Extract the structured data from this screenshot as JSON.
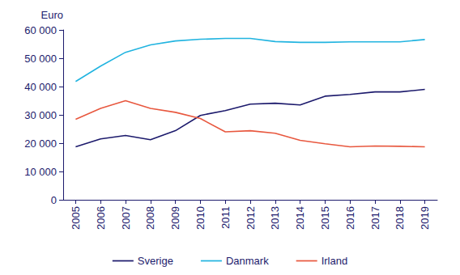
{
  "chart_data": {
    "type": "line",
    "y_label": "Euro",
    "categories": [
      "2005",
      "2006",
      "2007",
      "2008",
      "2009",
      "2010",
      "2011",
      "2012",
      "2013",
      "2014",
      "2015",
      "2016",
      "2017",
      "2018",
      "2019"
    ],
    "series": [
      {
        "name": "Sverige",
        "color": "#1c1a6c",
        "values": [
          18700,
          21500,
          22700,
          21200,
          24400,
          29800,
          31500,
          33800,
          34100,
          33500,
          36600,
          37200,
          38100,
          38100,
          39000
        ]
      },
      {
        "name": "Danmark",
        "color": "#22b4e0",
        "values": [
          41800,
          47200,
          52100,
          54700,
          56100,
          56700,
          57000,
          57000,
          55900,
          55600,
          55600,
          55800,
          55800,
          55800,
          56600
        ]
      },
      {
        "name": "Irland",
        "color": "#e8583f",
        "values": [
          28400,
          32300,
          35000,
          32300,
          30900,
          28700,
          24000,
          24400,
          23500,
          21000,
          19800,
          18700,
          19000,
          18900,
          18700
        ]
      }
    ],
    "ylim": [
      0,
      60000
    ],
    "yticks": [
      0,
      {
        "value": 10000,
        "label": "10 000"
      },
      {
        "value": 20000,
        "label": "20 000"
      },
      {
        "value": 30000,
        "label": "30 000"
      },
      {
        "value": 40000,
        "label": "40 000"
      },
      {
        "value": 50000,
        "label": "50 000"
      },
      {
        "value": 60000,
        "label": "60 000"
      }
    ],
    "grid": false,
    "legend": "bottom"
  }
}
